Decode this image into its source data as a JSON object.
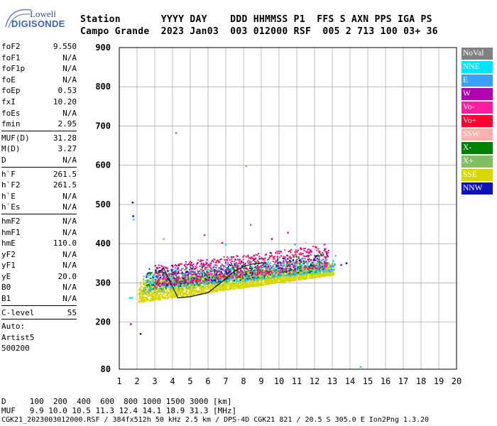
{
  "logo": {
    "line1": "Lowell",
    "line2": "DIGISONDE"
  },
  "header": {
    "row1": "Station       YYYY DAY    DDD HHMMSS P1  FFS S AXN PPS IGA PS",
    "row2": "Campo Grande  2023 Jan03  003 012000 RSF  005 2 713 100 03+ 36"
  },
  "params": {
    "group1": [
      {
        "k": "foF2",
        "v": "9.550"
      },
      {
        "k": "foF1",
        "v": "N/A"
      },
      {
        "k": "foF1p",
        "v": "N/A"
      },
      {
        "k": "foE",
        "v": "N/A"
      },
      {
        "k": "foEp",
        "v": "0.53"
      },
      {
        "k": "fxI",
        "v": "10.20"
      },
      {
        "k": "foEs",
        "v": "N/A"
      },
      {
        "k": "fmin",
        "v": "2.95"
      }
    ],
    "group2": [
      {
        "k": "MUF(D)",
        "v": "31.28"
      },
      {
        "k": "M(D)",
        "v": "3.27"
      },
      {
        "k": "D",
        "v": "N/A"
      }
    ],
    "group3": [
      {
        "k": "h`F",
        "v": "261.5"
      },
      {
        "k": "h`F2",
        "v": "261.5"
      },
      {
        "k": "h`E",
        "v": "N/A"
      },
      {
        "k": "h`Es",
        "v": "N/A"
      }
    ],
    "group4": [
      {
        "k": "hmF2",
        "v": "N/A"
      },
      {
        "k": "hmF1",
        "v": "N/A"
      },
      {
        "k": "hmE",
        "v": "110.0"
      },
      {
        "k": "yF2",
        "v": "N/A"
      },
      {
        "k": "yF1",
        "v": "N/A"
      },
      {
        "k": "yE",
        "v": "20.0"
      },
      {
        "k": "B0",
        "v": "N/A"
      },
      {
        "k": "B1",
        "v": "N/A"
      }
    ],
    "clevel": {
      "k": "C-level",
      "v": "55"
    },
    "auto": [
      "Auto:",
      "Artist5",
      "500200"
    ]
  },
  "legend": [
    {
      "label": "NoVal",
      "color": "#808080"
    },
    {
      "label": "NNE",
      "color": "#00e5ff"
    },
    {
      "label": "E",
      "color": "#3aa0ff"
    },
    {
      "label": "W",
      "color": "#b000b0"
    },
    {
      "label": "Vo-",
      "color": "#ff1aa0"
    },
    {
      "label": "Vo+",
      "color": "#ff0030"
    },
    {
      "label": "SSW",
      "color": "#ffb0b0"
    },
    {
      "label": "X-",
      "color": "#008000"
    },
    {
      "label": "X+",
      "color": "#80c060"
    },
    {
      "label": "SSE",
      "color": "#d8d800"
    },
    {
      "label": "NNW",
      "color": "#1010c0"
    }
  ],
  "footer": {
    "line1": "D     100  200  400  600  800 1000 1500 3000 [km]",
    "line2": "MUF   9.9 10.0 10.5 11.3 12.4 14.1 18.9 31.3 [MHz]",
    "line3": "CGK21_2023003012000.RSF / 384fx512h 50 kHz 2.5 km / DPS-4D CGK21 821 / 20.5 S 305.0 E Ion2Png 1.3.20"
  },
  "chart_data": {
    "type": "scatter",
    "xlabel": "",
    "ylabel": "",
    "xlim": [
      1,
      20
    ],
    "ylim": [
      80,
      900
    ],
    "x_ticks": [
      1,
      2,
      3,
      4,
      5,
      6,
      7,
      8,
      9,
      10,
      11,
      12,
      13,
      14,
      15,
      16,
      17,
      18,
      19,
      20
    ],
    "y_ticks": [
      80,
      200,
      300,
      400,
      500,
      600,
      700,
      800,
      900
    ],
    "grid": true,
    "trace": {
      "x": [
        3.2,
        3.5,
        4.3,
        5.0,
        6.0,
        6.7,
        7.5,
        8.0,
        8.5,
        9.3
      ],
      "y": [
        325,
        338,
        262,
        265,
        275,
        300,
        330,
        342,
        348,
        352
      ]
    },
    "bands": [
      {
        "series": "SSE",
        "color": "#d8d800",
        "x0": 2.1,
        "x1": 13.1,
        "ylow0": 250,
        "ylow1": 320,
        "yhigh0": 305,
        "yhigh1": 350,
        "n": 2600
      },
      {
        "series": "X+",
        "color": "#80c060",
        "x0": 2.3,
        "x1": 13.0,
        "ylow0": 270,
        "ylow1": 330,
        "yhigh0": 320,
        "yhigh1": 360,
        "n": 500
      },
      {
        "series": "NNE",
        "color": "#00e5ff",
        "x0": 2.5,
        "x1": 13.2,
        "ylow0": 280,
        "ylow1": 330,
        "yhigh0": 330,
        "yhigh1": 370,
        "n": 420
      },
      {
        "series": "E",
        "color": "#3aa0ff",
        "x0": 2.5,
        "x1": 13.2,
        "ylow0": 280,
        "ylow1": 330,
        "yhigh0": 330,
        "yhigh1": 370,
        "n": 280
      },
      {
        "series": "W",
        "color": "#b000b0",
        "x0": 3.0,
        "x1": 12.8,
        "ylow0": 290,
        "ylow1": 340,
        "yhigh0": 345,
        "yhigh1": 395,
        "n": 280
      },
      {
        "series": "Vo-",
        "color": "#ff1aa0",
        "x0": 3.0,
        "x1": 12.8,
        "ylow0": 290,
        "ylow1": 340,
        "yhigh0": 345,
        "yhigh1": 400,
        "n": 300
      },
      {
        "series": "Vo+",
        "color": "#ff0030",
        "x0": 3.0,
        "x1": 12.6,
        "ylow0": 290,
        "ylow1": 340,
        "yhigh0": 345,
        "yhigh1": 395,
        "n": 260
      },
      {
        "series": "X-",
        "color": "#008000",
        "x0": 2.5,
        "x1": 12.5,
        "ylow0": 280,
        "ylow1": 330,
        "yhigh0": 330,
        "yhigh1": 380,
        "n": 180
      },
      {
        "series": "NNW",
        "color": "#1010c0",
        "x0": 2.5,
        "x1": 12.5,
        "ylow0": 280,
        "ylow1": 330,
        "yhigh0": 340,
        "yhigh1": 380,
        "n": 140
      },
      {
        "series": "NoVal",
        "color": "#808080",
        "x0": 2.5,
        "x1": 12.5,
        "ylow0": 280,
        "ylow1": 330,
        "yhigh0": 330,
        "yhigh1": 380,
        "n": 160
      }
    ],
    "outliers": [
      {
        "x": 1.75,
        "y": 505,
        "c": "#1010c0"
      },
      {
        "x": 1.78,
        "y": 470,
        "c": "#1010c0"
      },
      {
        "x": 1.8,
        "y": 462,
        "c": "#00e5ff"
      },
      {
        "x": 1.65,
        "y": 195,
        "c": "#b000b0"
      },
      {
        "x": 2.2,
        "y": 170,
        "c": "#1010c0"
      },
      {
        "x": 4.2,
        "y": 682,
        "c": "#808080"
      },
      {
        "x": 8.15,
        "y": 598,
        "c": "#80c060"
      },
      {
        "x": 14.6,
        "y": 86,
        "c": "#00e5ff"
      },
      {
        "x": 1.6,
        "y": 262,
        "c": "#00e5ff"
      },
      {
        "x": 1.72,
        "y": 262,
        "c": "#00e5ff"
      },
      {
        "x": 3.5,
        "y": 412,
        "c": "#80c060"
      },
      {
        "x": 5.8,
        "y": 422,
        "c": "#ff1aa0"
      },
      {
        "x": 8.4,
        "y": 448,
        "c": "#808080"
      },
      {
        "x": 7.0,
        "y": 398,
        "c": "#00e5ff"
      },
      {
        "x": 6.8,
        "y": 402,
        "c": "#ff0030"
      },
      {
        "x": 9.6,
        "y": 412,
        "c": "#b000b0"
      },
      {
        "x": 10.5,
        "y": 428,
        "c": "#ff1aa0"
      },
      {
        "x": 10.9,
        "y": 398,
        "c": "#3aa0ff"
      },
      {
        "x": 11.5,
        "y": 402,
        "c": "#ffb0b0"
      },
      {
        "x": 12.7,
        "y": 372,
        "c": "#b000b0"
      },
      {
        "x": 13.8,
        "y": 350,
        "c": "#1010c0"
      },
      {
        "x": 13.5,
        "y": 346,
        "c": "#b000b0"
      }
    ]
  }
}
